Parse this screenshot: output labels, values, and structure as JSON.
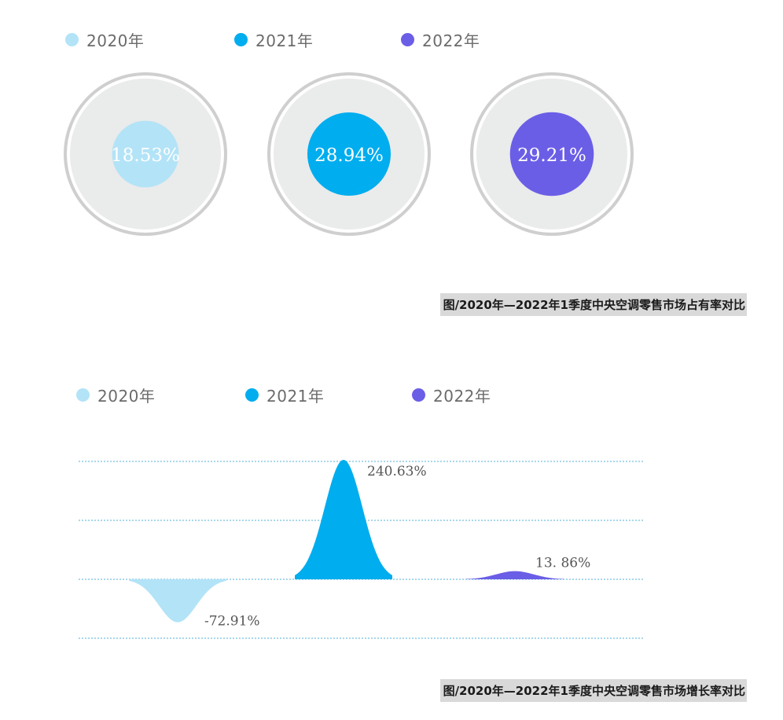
{
  "chart_data": [
    {
      "type": "bubble",
      "series": [
        {
          "name": "2020年",
          "value": 18.53,
          "label": "18.53%",
          "color": "#b3e3f7"
        },
        {
          "name": "2021年",
          "value": 28.94,
          "label": "28.94%",
          "color": "#00adee"
        },
        {
          "name": "2022年",
          "value": 29.21,
          "label": "29.21%",
          "color": "#6b5ee6"
        }
      ],
      "title": "图/2020年—2022年1季度中央空调零售市场占有率对比",
      "legend_position": "top-left"
    },
    {
      "type": "area",
      "series": [
        {
          "name": "2020年",
          "value": -72.91,
          "label": "-72.91%",
          "color": "#b3e3f7"
        },
        {
          "name": "2021年",
          "value": 240.63,
          "label": "240.63%",
          "color": "#00adee"
        },
        {
          "name": "2022年",
          "value": 13.86,
          "label": "13. 86%",
          "color": "#6b5ee6"
        }
      ],
      "ylim": [
        -100,
        200
      ],
      "grid": true,
      "title": "图/2020年—2022年1季度中央空调零售市场增长率对比",
      "legend_position": "top-left"
    }
  ]
}
